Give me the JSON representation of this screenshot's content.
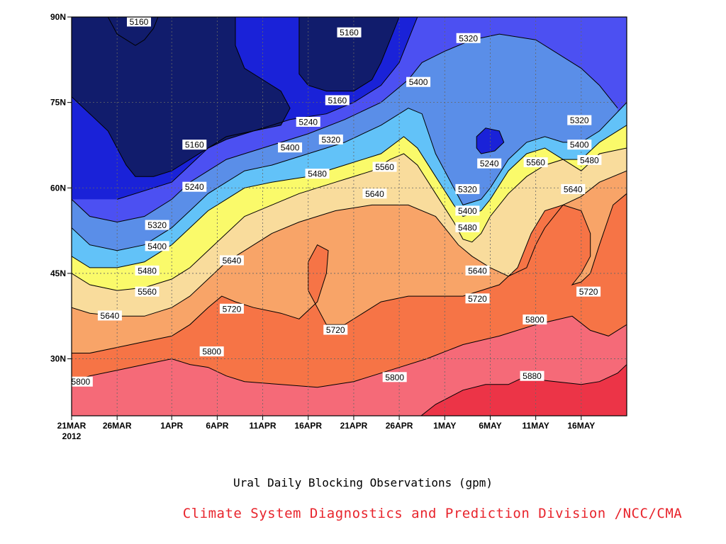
{
  "chart_data": {
    "type": "contour",
    "title": "Ural Daily Blocking Observations (gpm)",
    "credit": "Climate System Diagnostics and Prediction Division /NCC/CMA",
    "x_tick_labels": [
      "21MAR",
      "26MAR",
      "1APR",
      "6APR",
      "11APR",
      "16APR",
      "21APR",
      "26APR",
      "1MAY",
      "6MAY",
      "11MAY",
      "16MAY"
    ],
    "x_year_label": "2012",
    "y_tick_labels": [
      "30N",
      "45N",
      "60N",
      "75N",
      "90N"
    ],
    "y_ticks": [
      30,
      45,
      60,
      75,
      90
    ],
    "ylim": [
      20,
      90
    ],
    "x_range_days": [
      0,
      61
    ],
    "grid": true,
    "levels": [
      5160,
      5240,
      5320,
      5400,
      5480,
      5560,
      5640,
      5720,
      5800,
      5880
    ],
    "level_colors": [
      "#111c6c",
      "#1a22d8",
      "#4c50f2",
      "#5a8ee8",
      "#62c2f8",
      "#fafa6a",
      "#f9dc9c",
      "#f8a468",
      "#f67446",
      "#f56a78",
      "#ec3447"
    ],
    "contour_lines": [
      {
        "level": 5880,
        "points": [
          [
            38.4,
            20
          ],
          [
            40,
            22
          ],
          [
            43,
            24.5
          ],
          [
            45.5,
            25.5
          ],
          [
            48,
            25.5
          ],
          [
            50,
            27
          ],
          [
            52,
            26.2
          ],
          [
            56,
            25.5
          ],
          [
            58,
            26
          ],
          [
            60,
            27.5
          ],
          [
            61,
            29
          ]
        ]
      },
      {
        "level": 5800,
        "points": [
          [
            0,
            26
          ],
          [
            2,
            27
          ],
          [
            5,
            28
          ],
          [
            8,
            29
          ],
          [
            11,
            30
          ],
          [
            13,
            29
          ],
          [
            15,
            28.5
          ],
          [
            17,
            27
          ],
          [
            19,
            26
          ],
          [
            23,
            25.5
          ],
          [
            27,
            25
          ],
          [
            31,
            26
          ],
          [
            35,
            28
          ],
          [
            39,
            30
          ],
          [
            43,
            32.5
          ],
          [
            47,
            34
          ],
          [
            51,
            36
          ],
          [
            55,
            37.5
          ],
          [
            57,
            35
          ],
          [
            59,
            34
          ],
          [
            61,
            36
          ]
        ]
      },
      {
        "level": 5720,
        "points": [
          [
            0,
            31
          ],
          [
            2,
            31
          ],
          [
            5,
            32
          ],
          [
            8,
            33
          ],
          [
            11,
            34
          ],
          [
            13,
            36
          ],
          [
            15,
            39
          ],
          [
            16.5,
            41
          ],
          [
            18,
            40
          ],
          [
            20,
            39
          ],
          [
            23,
            38
          ],
          [
            25,
            37
          ],
          [
            27,
            40
          ],
          [
            28,
            45
          ],
          [
            28.2,
            49
          ],
          [
            27,
            50
          ],
          [
            26,
            47
          ],
          [
            26,
            42
          ],
          [
            28,
            36
          ],
          [
            30,
            36
          ],
          [
            32,
            38
          ],
          [
            34,
            40
          ],
          [
            37,
            41
          ],
          [
            40,
            41
          ],
          [
            43,
            41
          ],
          [
            45,
            42
          ],
          [
            47,
            43
          ],
          [
            49,
            46
          ],
          [
            50.5,
            52
          ],
          [
            52,
            56
          ],
          [
            54,
            57
          ],
          [
            56,
            56
          ],
          [
            57,
            52
          ],
          [
            57,
            48
          ],
          [
            56,
            45
          ],
          [
            55,
            43
          ],
          [
            56,
            43.5
          ],
          [
            57,
            45
          ],
          [
            58,
            50
          ],
          [
            59.5,
            57
          ],
          [
            61,
            59
          ]
        ]
      },
      {
        "level": 5640,
        "points": [
          [
            0,
            39
          ],
          [
            2,
            38
          ],
          [
            5,
            37.5
          ],
          [
            8,
            37.5
          ],
          [
            11,
            39
          ],
          [
            13,
            41
          ],
          [
            15,
            44
          ],
          [
            17,
            47
          ],
          [
            19,
            49
          ],
          [
            22,
            52
          ],
          [
            25,
            54
          ],
          [
            29,
            56
          ],
          [
            33,
            57
          ],
          [
            37,
            57
          ],
          [
            40,
            55
          ],
          [
            41.5,
            52
          ],
          [
            42.5,
            50
          ],
          [
            44,
            48
          ],
          [
            46,
            46
          ],
          [
            48,
            44.5
          ],
          [
            50,
            46
          ],
          [
            51,
            50
          ],
          [
            52,
            53
          ],
          [
            54,
            57
          ],
          [
            56,
            58.5
          ],
          [
            58,
            61
          ],
          [
            61,
            63
          ]
        ]
      },
      {
        "level": 5560,
        "points": [
          [
            0,
            45
          ],
          [
            2,
            43
          ],
          [
            5,
            42
          ],
          [
            8,
            42.5
          ],
          [
            11,
            44
          ],
          [
            13,
            46
          ],
          [
            15,
            49
          ],
          [
            17,
            52
          ],
          [
            19,
            55
          ],
          [
            22,
            57
          ],
          [
            25,
            59
          ],
          [
            29,
            61
          ],
          [
            33,
            63
          ],
          [
            35,
            65
          ],
          [
            36.5,
            66
          ],
          [
            38,
            64
          ],
          [
            40,
            59
          ],
          [
            42,
            54
          ],
          [
            43,
            51
          ],
          [
            44,
            50.5
          ],
          [
            45,
            52
          ],
          [
            46,
            55
          ],
          [
            48,
            59
          ],
          [
            50,
            62
          ],
          [
            52,
            64
          ],
          [
            54,
            65
          ],
          [
            56,
            63
          ],
          [
            58,
            66
          ],
          [
            61,
            67
          ]
        ]
      },
      {
        "level": 5480,
        "points": [
          [
            0,
            48
          ],
          [
            2,
            46
          ],
          [
            5,
            46
          ],
          [
            8,
            47
          ],
          [
            11,
            50
          ],
          [
            13,
            53
          ],
          [
            15,
            56
          ],
          [
            17,
            58
          ],
          [
            19,
            60
          ],
          [
            22,
            61
          ],
          [
            26,
            62
          ],
          [
            30,
            64
          ],
          [
            34,
            66
          ],
          [
            36.5,
            69
          ],
          [
            38,
            67
          ],
          [
            40,
            62
          ],
          [
            42,
            57
          ],
          [
            43,
            55
          ],
          [
            45,
            56
          ],
          [
            46,
            58
          ],
          [
            48,
            63
          ],
          [
            50,
            66
          ],
          [
            52,
            67
          ],
          [
            54,
            65
          ],
          [
            56,
            65
          ],
          [
            58,
            68
          ],
          [
            61,
            71
          ]
        ]
      },
      {
        "level": 5400,
        "points": [
          [
            0,
            53
          ],
          [
            2,
            50
          ],
          [
            5,
            49
          ],
          [
            8,
            50
          ],
          [
            11,
            53
          ],
          [
            13,
            56
          ],
          [
            15,
            59
          ],
          [
            17,
            61
          ],
          [
            19,
            63
          ],
          [
            22,
            64
          ],
          [
            26,
            66
          ],
          [
            30,
            68
          ],
          [
            34,
            71
          ],
          [
            37,
            74
          ],
          [
            38.5,
            73
          ],
          [
            40,
            66
          ],
          [
            42,
            60
          ],
          [
            43,
            57
          ],
          [
            45,
            58
          ],
          [
            46,
            60
          ],
          [
            48,
            65
          ],
          [
            50,
            68
          ],
          [
            52,
            69
          ],
          [
            54,
            68
          ],
          [
            56,
            68
          ],
          [
            58,
            70
          ],
          [
            61,
            75
          ]
        ]
      },
      {
        "level": 5320,
        "points": [
          [
            0,
            58
          ],
          [
            2,
            55
          ],
          [
            5,
            54
          ],
          [
            8,
            55
          ],
          [
            11,
            58
          ],
          [
            13,
            61
          ],
          [
            15,
            63
          ],
          [
            17,
            65
          ],
          [
            19,
            66
          ],
          [
            22,
            67.5
          ],
          [
            26,
            69.5
          ],
          [
            30,
            72
          ],
          [
            34,
            75
          ],
          [
            37,
            79
          ],
          [
            38.5,
            82
          ],
          [
            41,
            84
          ],
          [
            44,
            86
          ],
          [
            47,
            87
          ],
          [
            51,
            86
          ],
          [
            54,
            83
          ],
          [
            56,
            81
          ],
          [
            58,
            78
          ],
          [
            59,
            76
          ],
          [
            60,
            74
          ]
        ]
      },
      {
        "level": 5240,
        "points": [
          [
            5,
            58
          ],
          [
            8,
            59.5
          ],
          [
            11,
            61
          ],
          [
            13,
            64
          ],
          [
            15,
            67
          ],
          [
            17,
            69
          ],
          [
            20,
            70
          ],
          [
            24,
            72
          ],
          [
            28,
            73
          ],
          [
            31,
            75
          ],
          [
            34,
            78
          ],
          [
            36,
            82
          ],
          [
            37,
            86
          ],
          [
            38,
            90
          ]
        ]
      },
      {
        "level": 5240,
        "closed": true,
        "points": [
          [
            45,
            66
          ],
          [
            46.5,
            66.5
          ],
          [
            47.5,
            68
          ],
          [
            47,
            70
          ],
          [
            45.5,
            70.5
          ],
          [
            44.5,
            69
          ],
          [
            44.5,
            67
          ]
        ]
      },
      {
        "level": 5160,
        "points": [
          [
            0,
            76
          ],
          [
            2,
            73
          ],
          [
            4,
            70
          ],
          [
            6,
            64
          ],
          [
            7,
            62
          ],
          [
            9,
            62
          ],
          [
            11,
            63
          ],
          [
            13,
            65
          ],
          [
            15,
            67
          ],
          [
            17,
            68.5
          ],
          [
            20,
            70
          ],
          [
            23,
            71
          ],
          [
            24,
            74
          ],
          [
            23,
            77
          ],
          [
            21,
            79
          ],
          [
            19,
            81
          ],
          [
            18,
            85
          ],
          [
            18,
            90
          ]
        ]
      },
      {
        "level": 5160,
        "points": [
          [
            25,
            90
          ],
          [
            25,
            80
          ],
          [
            26,
            78
          ],
          [
            28,
            77
          ],
          [
            31,
            77
          ],
          [
            33,
            79
          ],
          [
            34,
            82
          ],
          [
            35,
            86
          ],
          [
            36,
            90
          ]
        ]
      },
      {
        "level": 5160,
        "points": [
          [
            4,
            90
          ],
          [
            5,
            87
          ],
          [
            7,
            85
          ],
          [
            8,
            86
          ],
          [
            9,
            88
          ],
          [
            9.5,
            90
          ]
        ]
      }
    ],
    "contour_labels": [
      {
        "text": "5160",
        "x": 7.4,
        "y": 89.2
      },
      {
        "text": "5160",
        "x": 30.5,
        "y": 87.3
      },
      {
        "text": "5320",
        "x": 43.6,
        "y": 86.3
      },
      {
        "text": "5400",
        "x": 38.1,
        "y": 78.6
      },
      {
        "text": "5160",
        "x": 29.2,
        "y": 75.4
      },
      {
        "text": "5240",
        "x": 26,
        "y": 71.6
      },
      {
        "text": "5320",
        "x": 28.5,
        "y": 68.5
      },
      {
        "text": "5400",
        "x": 24,
        "y": 67.1
      },
      {
        "text": "5160",
        "x": 13.5,
        "y": 67.6
      },
      {
        "text": "5240",
        "x": 45.9,
        "y": 64.3
      },
      {
        "text": "5560",
        "x": 34.4,
        "y": 63.7
      },
      {
        "text": "5480",
        "x": 27,
        "y": 62.5
      },
      {
        "text": "5320",
        "x": 55.8,
        "y": 71.9
      },
      {
        "text": "5400",
        "x": 55.8,
        "y": 67.6
      },
      {
        "text": "5560",
        "x": 51,
        "y": 64.5
      },
      {
        "text": "5480",
        "x": 56.9,
        "y": 64.9
      },
      {
        "text": "5240",
        "x": 13.5,
        "y": 60.2
      },
      {
        "text": "5640",
        "x": 33.3,
        "y": 59
      },
      {
        "text": "5320",
        "x": 43.5,
        "y": 59.8
      },
      {
        "text": "5640",
        "x": 55.1,
        "y": 59.8
      },
      {
        "text": "5400",
        "x": 43.5,
        "y": 56
      },
      {
        "text": "5480",
        "x": 43.5,
        "y": 53.1
      },
      {
        "text": "5320",
        "x": 9.4,
        "y": 53.5
      },
      {
        "text": "5400",
        "x": 9.4,
        "y": 49.8
      },
      {
        "text": "5640",
        "x": 17.6,
        "y": 47.3
      },
      {
        "text": "5480",
        "x": 8.3,
        "y": 45.5
      },
      {
        "text": "5640",
        "x": 44.6,
        "y": 45.5
      },
      {
        "text": "5560",
        "x": 8.3,
        "y": 41.8
      },
      {
        "text": "5720",
        "x": 56.8,
        "y": 41.8
      },
      {
        "text": "5720",
        "x": 44.6,
        "y": 40.6
      },
      {
        "text": "5720",
        "x": 17.6,
        "y": 38.8
      },
      {
        "text": "5640",
        "x": 4.2,
        "y": 37.6
      },
      {
        "text": "5800",
        "x": 50.9,
        "y": 36.9
      },
      {
        "text": "5720",
        "x": 29,
        "y": 35.1
      },
      {
        "text": "5800",
        "x": 15.4,
        "y": 31.3
      },
      {
        "text": "5800",
        "x": 35.5,
        "y": 26.8
      },
      {
        "text": "5880",
        "x": 50.6,
        "y": 27
      },
      {
        "text": "5800",
        "x": 1,
        "y": 26
      }
    ]
  }
}
